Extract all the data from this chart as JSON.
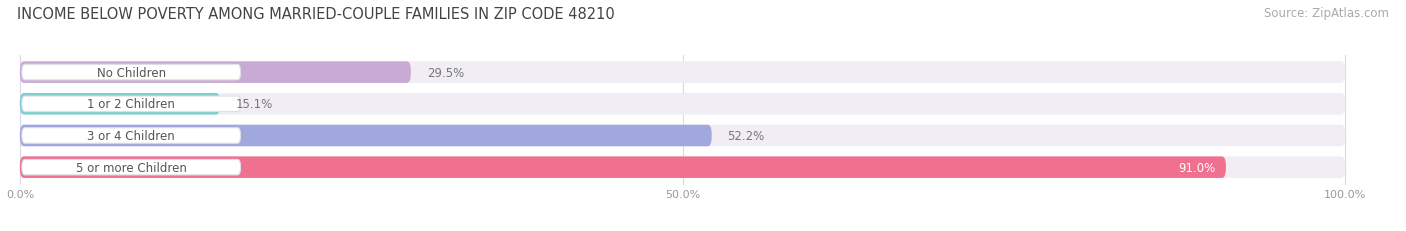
{
  "title": "INCOME BELOW POVERTY AMONG MARRIED-COUPLE FAMILIES IN ZIP CODE 48210",
  "source": "Source: ZipAtlas.com",
  "categories": [
    "No Children",
    "1 or 2 Children",
    "3 or 4 Children",
    "5 or more Children"
  ],
  "values": [
    29.5,
    15.1,
    52.2,
    91.0
  ],
  "bar_colors": [
    "#c9aad4",
    "#7ecfcf",
    "#a0a8de",
    "#f07090"
  ],
  "bar_bg_color": "#f0eef4",
  "label_bg_color": "#ffffff",
  "xtick_labels": [
    "0.0%",
    "50.0%",
    "100.0%"
  ],
  "title_fontsize": 10.5,
  "source_fontsize": 8.5,
  "label_fontsize": 8.5,
  "value_fontsize": 8.5,
  "background_color": "#ffffff",
  "grid_color": "#d8d8e8",
  "value_inside_threshold": 85
}
